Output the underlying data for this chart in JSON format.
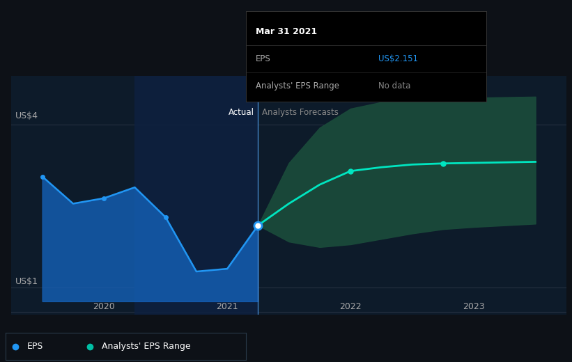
{
  "bg_color": "#0d1117",
  "plot_bg_color": "#0d1b2a",
  "grid_color": "#253040",
  "title_text": "Mar 31 2021",
  "tooltip_eps_label": "EPS",
  "tooltip_eps_value": "US$2.151",
  "tooltip_range_label": "Analysts' EPS Range",
  "tooltip_range_value": "No data",
  "actual_label": "Actual",
  "forecast_label": "Analysts Forecasts",
  "ylabel_top": "US$4",
  "ylabel_bottom": "US$1",
  "ylim": [
    0.5,
    4.9
  ],
  "xlim_num": [
    2019.25,
    2023.75
  ],
  "divider_x": 2021.25,
  "actual_x": [
    2019.5,
    2019.75,
    2020.0,
    2020.25,
    2020.5,
    2020.75,
    2021.0,
    2021.25
  ],
  "actual_y": [
    3.05,
    2.55,
    2.65,
    2.85,
    2.3,
    1.3,
    1.35,
    2.15
  ],
  "actual_color": "#2196f3",
  "actual_fill_lower": [
    0.75,
    0.75,
    0.75,
    0.75,
    0.75,
    0.75,
    0.75,
    0.75
  ],
  "actual_fill_color": "#1565c0",
  "span_start": 2020.25,
  "span_end": 2021.25,
  "span_color": "#0d2040",
  "forecast_x": [
    2021.25,
    2021.5,
    2021.75,
    2022.0,
    2022.25,
    2022.5,
    2022.75,
    2023.0,
    2023.25,
    2023.5
  ],
  "forecast_y": [
    2.15,
    2.55,
    2.9,
    3.15,
    3.22,
    3.27,
    3.29,
    3.3,
    3.31,
    3.32
  ],
  "forecast_color": "#00e5c0",
  "forecast_upper": [
    2.15,
    3.3,
    3.95,
    4.3,
    4.42,
    4.47,
    4.49,
    4.5,
    4.51,
    4.52
  ],
  "forecast_lower": [
    2.15,
    1.85,
    1.75,
    1.8,
    1.9,
    2.0,
    2.08,
    2.12,
    2.15,
    2.18
  ],
  "forecast_fill_color": "#1a4a3a",
  "xticks": [
    2020.0,
    2021.0,
    2022.0,
    2023.0
  ],
  "xtick_labels": [
    "2020",
    "2021",
    "2022",
    "2023"
  ],
  "legend_eps_color": "#2196f3",
  "legend_range_color": "#00bfa5",
  "marker_indices_actual": [
    0,
    2,
    4
  ],
  "forecast_marker_indices": [
    3,
    6
  ]
}
